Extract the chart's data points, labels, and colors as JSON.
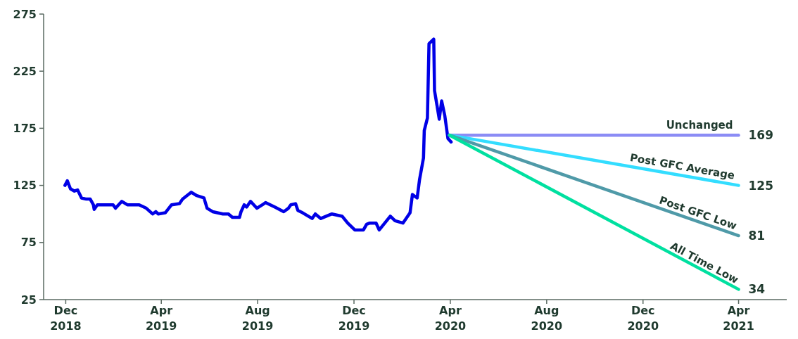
{
  "chart_data": {
    "type": "line",
    "xlim": [
      "2018-11-03",
      "2021-06-01"
    ],
    "xticks": [
      {
        "value": "2018-12-01",
        "label": "Dec 2018"
      },
      {
        "value": "2019-04-01",
        "label": "Apr 2019"
      },
      {
        "value": "2019-08-01",
        "label": "Aug 2019"
      },
      {
        "value": "2019-12-01",
        "label": "Dec 2019"
      },
      {
        "value": "2020-04-01",
        "label": "Apr 2020"
      },
      {
        "value": "2020-08-01",
        "label": "Aug 2020"
      },
      {
        "value": "2020-12-01",
        "label": "Dec 2020"
      },
      {
        "value": "2021-04-01",
        "label": "Apr 2021"
      }
    ],
    "ylim": [
      25,
      275
    ],
    "yticks": [
      25,
      75,
      125,
      175,
      225,
      275
    ],
    "grid": false,
    "marker": "none",
    "line_style": "solid",
    "series": [
      {
        "color": "#0000e6",
        "x": [
          "2018-11-30",
          "2018-12-03",
          "2018-12-07",
          "2018-12-12",
          "2018-12-16",
          "2018-12-21",
          "2018-12-27",
          "2019-01-01",
          "2019-01-05",
          "2019-01-06",
          "2019-01-10",
          "2019-01-30",
          "2019-02-02",
          "2019-02-10",
          "2019-02-17",
          "2019-03-04",
          "2019-03-13",
          "2019-03-21",
          "2019-03-25",
          "2019-03-28",
          "2019-04-06",
          "2019-04-14",
          "2019-04-24",
          "2019-04-28",
          "2019-05-09",
          "2019-05-16",
          "2019-05-25",
          "2019-05-29",
          "2019-06-05",
          "2019-06-18",
          "2019-06-25",
          "2019-06-30",
          "2019-07-09",
          "2019-07-11",
          "2019-07-15",
          "2019-07-18",
          "2019-07-23",
          "2019-07-31",
          "2019-08-07",
          "2019-08-11",
          "2019-08-23",
          "2019-09-03",
          "2019-09-09",
          "2019-09-12",
          "2019-09-18",
          "2019-09-21",
          "2019-09-27",
          "2019-10-09",
          "2019-10-13",
          "2019-10-20",
          "2019-11-03",
          "2019-11-16",
          "2019-11-23",
          "2019-12-02",
          "2019-12-13",
          "2019-12-17",
          "2019-12-21",
          "2019-12-29",
          "2020-01-02",
          "2020-01-16",
          "2020-01-22",
          "2020-02-01",
          "2020-02-10",
          "2020-02-13",
          "2020-02-19",
          "2020-02-22",
          "2020-02-27",
          "2020-02-28",
          "2020-03-03",
          "2020-03-05",
          "2020-03-11",
          "2020-03-12",
          "2020-03-18",
          "2020-03-21",
          "2020-03-25",
          "2020-03-29",
          "2020-04-02"
        ],
        "values": [
          125,
          129,
          122,
          120,
          121,
          114,
          113,
          113,
          108,
          104,
          108,
          108,
          105,
          111,
          108,
          108,
          105,
          100,
          102,
          100,
          101,
          108,
          109,
          113,
          119,
          116,
          114,
          105,
          102,
          100,
          100,
          97,
          97,
          102,
          108,
          106,
          111,
          105,
          108,
          110,
          106,
          102,
          105,
          108,
          109,
          103,
          101,
          96,
          100,
          96,
          100,
          98,
          92,
          86,
          86,
          91,
          92,
          92,
          86,
          98,
          94,
          92,
          101,
          117,
          114,
          130,
          149,
          173,
          184,
          249,
          253,
          208,
          183,
          199,
          186,
          166,
          163
        ]
      },
      {
        "name": "Unchanged",
        "color": "#8b8cf5",
        "x": [
          "2020-03-31",
          "2021-04-01"
        ],
        "values": [
          169,
          169
        ],
        "value_labels": [
          null,
          "169"
        ]
      },
      {
        "name": "Post GFC Average",
        "color": "#33ddff",
        "x": [
          "2020-03-31",
          "2021-04-01"
        ],
        "values": [
          169,
          125
        ],
        "value_labels": [
          null,
          "125"
        ]
      },
      {
        "name": "Post GFC Low",
        "color": "#4f9aa8",
        "x": [
          "2020-03-31",
          "2021-04-01"
        ],
        "values": [
          169,
          81
        ],
        "value_labels": [
          null,
          "81"
        ]
      },
      {
        "name": "All Time Low",
        "color": "#00e0a0",
        "x": [
          "2020-03-31",
          "2021-04-01"
        ],
        "values": [
          169,
          34
        ],
        "value_labels": [
          null,
          "34"
        ]
      }
    ]
  }
}
